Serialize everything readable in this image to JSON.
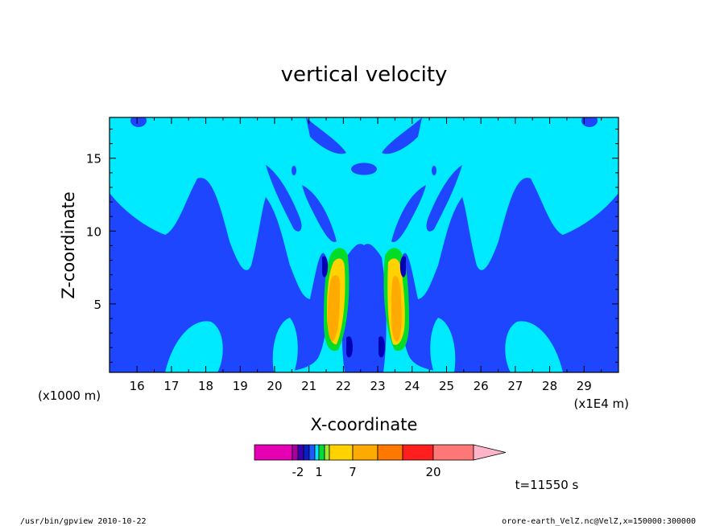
{
  "chart_data": {
    "type": "heatmap",
    "title": "vertical velocity",
    "xlabel": "X-coordinate",
    "ylabel": "Z-coordinate",
    "x_units_left": "(x1000 m)",
    "x_units_right": "(x1E4 m)",
    "xlim": [
      15.2,
      30.0
    ],
    "ylim": [
      0.3,
      17.8
    ],
    "x_ticks": [
      "16",
      "17",
      "18",
      "19",
      "20",
      "21",
      "22",
      "23",
      "24",
      "25",
      "26",
      "27",
      "28",
      "29"
    ],
    "y_ticks": [
      "5",
      "10",
      "15"
    ],
    "time_label": "t=11550 s",
    "colorbar": {
      "levels": [
        {
          "color": "#e600b4"
        },
        {
          "color": "#a6009f"
        },
        {
          "color": "#3c00b4"
        },
        {
          "color": "#0a1ec8"
        },
        {
          "color": "#1e5aff"
        },
        {
          "color": "#00e8ff"
        },
        {
          "color": "#00dc3c"
        },
        {
          "color": "#a0e632"
        },
        {
          "color": "#ffd200"
        },
        {
          "color": "#ffaa00"
        },
        {
          "color": "#ff7800"
        },
        {
          "color": "#ff1e1e"
        },
        {
          "color": "#ff7878"
        },
        {
          "color": "#ffb4c8"
        }
      ],
      "labels": [
        "-2",
        "1",
        "7",
        "20"
      ]
    },
    "colors": {
      "background_field": "#00eaff",
      "downdraft": "#1e46ff",
      "weak_updraft": "#0000b4",
      "green": "#00dc28",
      "yellow": "#ffd200",
      "orange": "#ffaa00"
    }
  },
  "footer": {
    "left": "/usr/bin/gpview   2010-10-22",
    "right": "orore-earth_VelZ.nc@VelZ,x=150000:300000"
  }
}
